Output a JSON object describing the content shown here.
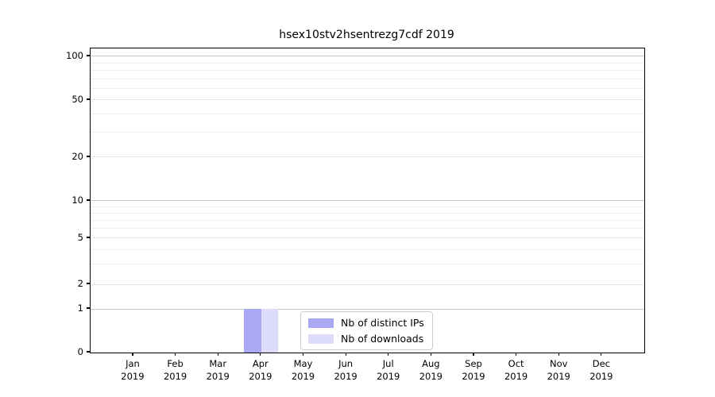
{
  "chart_data": {
    "type": "bar",
    "title": "hsex10stv2hsentrezg7cdf 2019",
    "year_label": "2019",
    "categories": [
      "Jan",
      "Feb",
      "Mar",
      "Apr",
      "May",
      "Jun",
      "Jul",
      "Aug",
      "Sep",
      "Oct",
      "Nov",
      "Dec"
    ],
    "series": [
      {
        "name": "Nb of distinct IPs",
        "color": "#a9a9f4",
        "values": [
          0,
          0,
          0,
          1,
          0,
          0,
          0,
          0,
          0,
          0,
          0,
          0
        ]
      },
      {
        "name": "Nb of downloads",
        "color": "#dcdcfa",
        "values": [
          0,
          0,
          0,
          1,
          0,
          0,
          0,
          0,
          0,
          0,
          0,
          0
        ]
      }
    ],
    "y_axis": {
      "scale": "log-like (linear 0-1, logarithmic 1-100)",
      "ticks": [
        0,
        1,
        2,
        5,
        10,
        20,
        50,
        100
      ],
      "minor_gridlines": [
        3,
        4,
        6,
        7,
        8,
        9,
        30,
        40,
        60,
        70,
        80,
        90
      ],
      "range_top_value": 110
    },
    "legend": {
      "position": "bottom-center"
    },
    "grid": true,
    "colors": {
      "decade_grid": "#c7c7c7",
      "minor_grid": "#eeeeee",
      "spine": "#000000",
      "background": "#ffffff"
    }
  }
}
